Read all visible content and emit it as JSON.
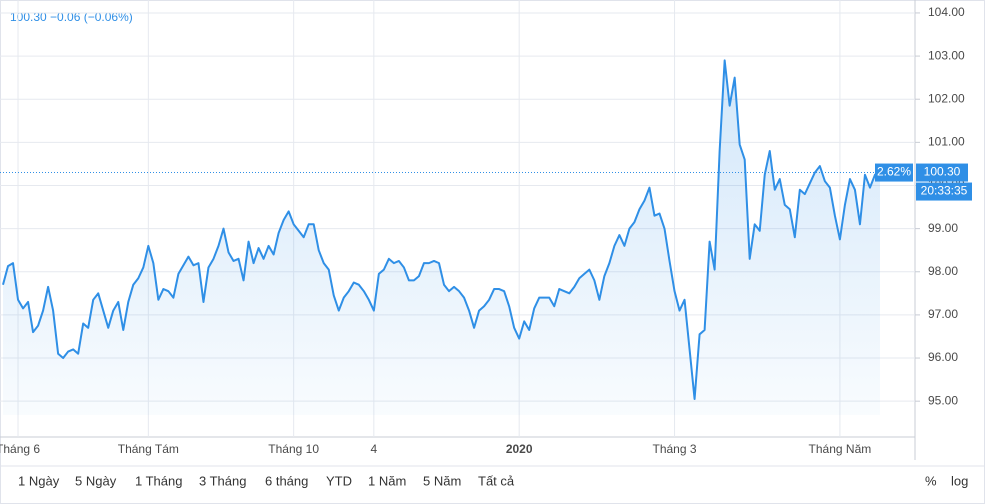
{
  "chart_data": {
    "type": "line",
    "legend_text": "100.30  −0.06 (−0.06%)",
    "categories": [
      null,
      null,
      null,
      "Tháng 6",
      null,
      null,
      null,
      null,
      null,
      null,
      null,
      null,
      null,
      null,
      null,
      null,
      null,
      null,
      null,
      null,
      null,
      null,
      null,
      null,
      null,
      null,
      null,
      null,
      null,
      "Tháng Tám",
      null,
      null,
      null,
      null,
      null,
      null,
      null,
      null,
      null,
      null,
      null,
      null,
      null,
      null,
      null,
      null,
      null,
      null,
      null,
      null,
      null,
      null,
      null,
      null,
      null,
      null,
      null,
      null,
      "Tháng 10",
      null,
      null,
      null,
      null,
      null,
      null,
      null,
      null,
      null,
      null,
      null,
      null,
      null,
      null,
      null,
      "4",
      null,
      null,
      null,
      null,
      null,
      null,
      null,
      null,
      null,
      null,
      null,
      null,
      null,
      null,
      null,
      null,
      null,
      null,
      null,
      null,
      null,
      null,
      null,
      null,
      null,
      null,
      null,
      null,
      "2020",
      null,
      null,
      null,
      null,
      null,
      null,
      null,
      null,
      null,
      null,
      null,
      null,
      null,
      null,
      null,
      null,
      null,
      null,
      null,
      null,
      null,
      null,
      null,
      null,
      null,
      null,
      null,
      null,
      null,
      null,
      "Tháng 3",
      null,
      null,
      null,
      null,
      null,
      null,
      null,
      null,
      null,
      null,
      null,
      null,
      null,
      null,
      null,
      null,
      null,
      null,
      null,
      null,
      null,
      null,
      null,
      null,
      null,
      null,
      null,
      null,
      null,
      null,
      null,
      null,
      "Tháng Năm",
      null,
      null,
      null,
      null,
      null,
      null,
      null,
      null
    ],
    "values": [
      97.7,
      98.13,
      98.2,
      97.35,
      97.15,
      97.3,
      96.6,
      96.75,
      97.1,
      97.65,
      97.1,
      96.1,
      96.0,
      96.15,
      96.2,
      96.1,
      96.8,
      96.7,
      97.35,
      97.5,
      97.1,
      96.7,
      97.1,
      97.3,
      96.65,
      97.3,
      97.7,
      97.85,
      98.1,
      98.6,
      98.2,
      97.35,
      97.6,
      97.55,
      97.4,
      97.95,
      98.15,
      98.35,
      98.15,
      98.2,
      97.3,
      98.1,
      98.3,
      98.6,
      99.0,
      98.45,
      98.25,
      98.3,
      97.8,
      98.7,
      98.2,
      98.55,
      98.3,
      98.6,
      98.4,
      98.9,
      99.2,
      99.4,
      99.1,
      98.95,
      98.8,
      99.1,
      99.1,
      98.5,
      98.2,
      98.05,
      97.45,
      97.1,
      97.4,
      97.55,
      97.75,
      97.7,
      97.55,
      97.35,
      97.1,
      97.95,
      98.05,
      98.3,
      98.2,
      98.25,
      98.1,
      97.8,
      97.8,
      97.9,
      98.2,
      98.2,
      98.25,
      98.2,
      97.7,
      97.55,
      97.65,
      97.55,
      97.4,
      97.1,
      96.7,
      97.1,
      97.2,
      97.35,
      97.6,
      97.6,
      97.55,
      97.2,
      96.7,
      96.45,
      96.85,
      96.65,
      97.15,
      97.4,
      97.4,
      97.4,
      97.2,
      97.6,
      97.55,
      97.5,
      97.65,
      97.85,
      97.95,
      98.05,
      97.8,
      97.35,
      97.9,
      98.2,
      98.6,
      98.85,
      98.6,
      99.0,
      99.15,
      99.45,
      99.65,
      99.95,
      99.3,
      99.35,
      99.0,
      98.25,
      97.55,
      97.1,
      97.35,
      96.2,
      95.05,
      96.55,
      96.65,
      98.7,
      98.05,
      100.8,
      102.9,
      101.85,
      102.5,
      100.95,
      100.6,
      98.3,
      99.1,
      98.95,
      100.25,
      100.8,
      99.9,
      100.15,
      99.55,
      99.45,
      98.8,
      99.9,
      99.8,
      100.05,
      100.3,
      100.45,
      100.1,
      99.95,
      99.3,
      98.75,
      99.55,
      100.15,
      99.9,
      99.1,
      100.25,
      99.95,
      100.25,
      100.3
    ],
    "color": "#2f8fe6",
    "ylim": [
      94.1,
      104.3
    ],
    "yticks": [
      {
        "value": 95,
        "label": "95.00"
      },
      {
        "value": 96,
        "label": "96.00"
      },
      {
        "value": 97,
        "label": "97.00"
      },
      {
        "value": 98,
        "label": "98.00"
      },
      {
        "value": 99,
        "label": "99.00"
      },
      {
        "value": 100,
        "label": "100.00"
      },
      {
        "value": 101,
        "label": "101.00"
      },
      {
        "value": 102,
        "label": "102.00"
      },
      {
        "value": 103,
        "label": "103.00"
      },
      {
        "value": 104,
        "label": "104.00"
      }
    ],
    "grid": true,
    "price_line": {
      "value": 100.3,
      "label": "100.30"
    },
    "price_change_label": "2.62%",
    "countdown": "20:33:35"
  },
  "toolbar": {
    "ranges": [
      "1 Ngày",
      "5 Ngày",
      "1 Tháng",
      "3 Tháng",
      "6 tháng",
      "YTD",
      "1 Năm",
      "5 Năm",
      "Tất cả"
    ],
    "percent": "%",
    "log": "log"
  }
}
